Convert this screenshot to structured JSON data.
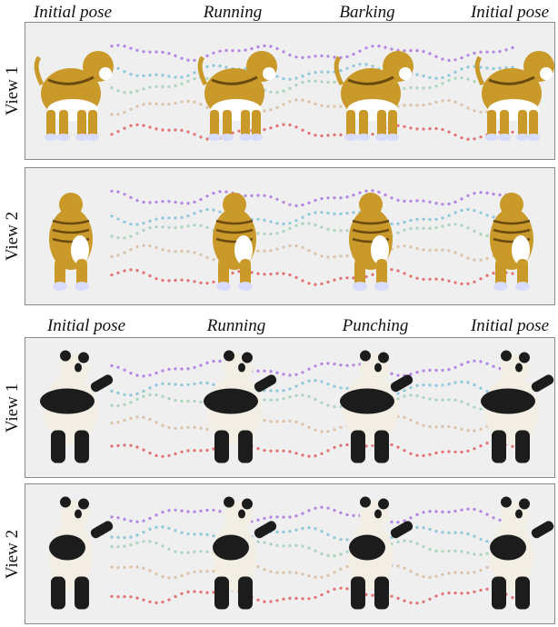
{
  "groups": [
    {
      "subject": "bulldog",
      "pose_labels": [
        "Initial pose",
        "Running",
        "Barking",
        "Initial pose"
      ],
      "views": [
        "View 1",
        "View 2"
      ]
    },
    {
      "subject": "panda",
      "pose_labels": [
        "Initial pose",
        "Running",
        "Punching",
        "Initial pose"
      ],
      "views": [
        "View 1",
        "View 2"
      ]
    }
  ],
  "trajectory_colors": [
    "#a970e0",
    "#7cc0d8",
    "#9fd0b0",
    "#d8b89a",
    "#e05a5a"
  ],
  "subject_colors": {
    "bulldog": {
      "coat": "#c99a2a",
      "stripe": "#6b4a10",
      "belly": "#ffffff",
      "paws": "#d8dcff"
    },
    "panda": {
      "white": "#f2eee4",
      "black": "#1c1c1c"
    }
  }
}
